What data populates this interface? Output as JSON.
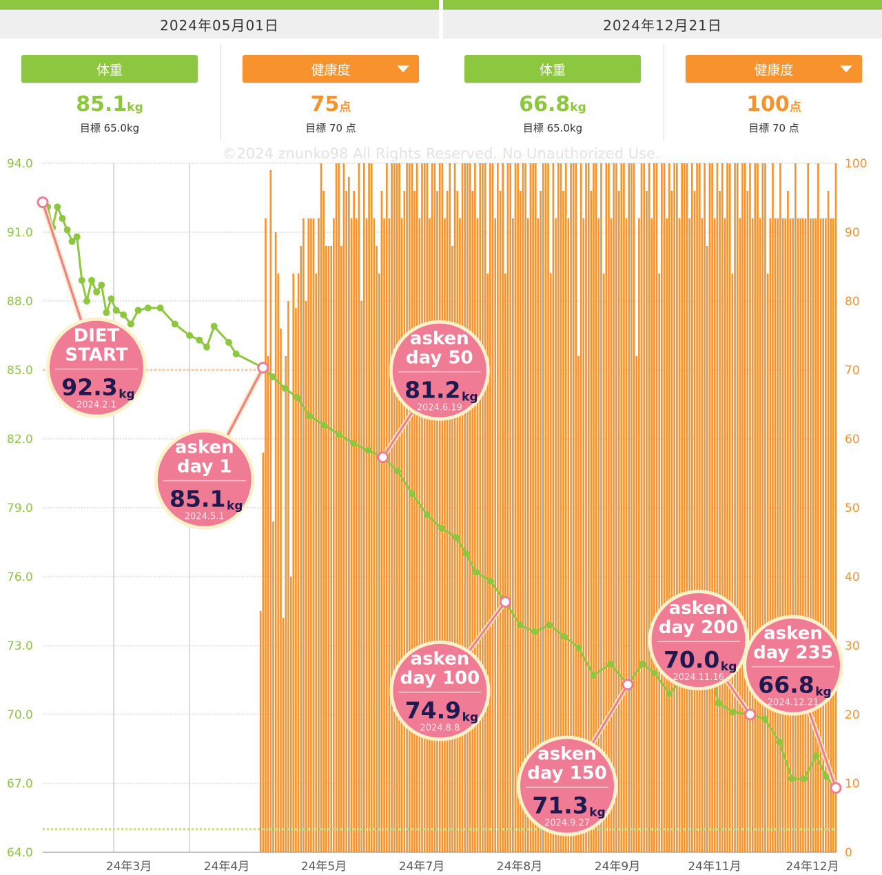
{
  "left_panel": {
    "date": "2024年05月01日",
    "weight": {
      "label": "体重",
      "value": "85.1",
      "unit": "kg",
      "goal": "目標 65.0kg"
    },
    "health": {
      "label": "健康度",
      "value": "75",
      "unit": "点",
      "goal": "目標 70 点"
    }
  },
  "right_panel": {
    "date": "2024年12月21日",
    "weight": {
      "label": "体重",
      "value": "66.8",
      "unit": "kg",
      "goal": "目標 65.0kg"
    },
    "health": {
      "label": "健康度",
      "value": "100",
      "unit": "点",
      "goal": "目標 70 点"
    }
  },
  "colors": {
    "weight": "#8dc63f",
    "health": "#f7922d",
    "balloon": "#f07b95",
    "balloon_text": "#1e1a4f"
  },
  "chart_data": {
    "type": "line",
    "watermark": "©2024 znunko98  All Rights Reserved. No Unauthorized Use.",
    "y_left": {
      "ticks": [
        "94.0",
        "91.0",
        "88.0",
        "85.0",
        "82.0",
        "79.0",
        "76.0",
        "73.0",
        "70.0",
        "67.0",
        "64.0"
      ],
      "min": 64.0,
      "max": 94.0
    },
    "y_right": {
      "ticks": [
        "100",
        "90",
        "80",
        "70",
        "60",
        "50",
        "40",
        "30",
        "20",
        "10",
        "0"
      ],
      "min": 0,
      "max": 100
    },
    "x_ticks": [
      "24年3月",
      "24年4月",
      "24年5月",
      "24年7月",
      "24年8月",
      "24年9月",
      "24年11月",
      "24年12月"
    ],
    "weight_goal": 65.0,
    "health_goal": 70,
    "series": [
      {
        "key": "weight",
        "points": [
          [
            "2024-02-01",
            92.3
          ],
          [
            "2024-02-03",
            92.1
          ],
          [
            "2024-02-05",
            91.2
          ],
          [
            "2024-02-07",
            92.1
          ],
          [
            "2024-02-09",
            91.6
          ],
          [
            "2024-02-11",
            91.1
          ],
          [
            "2024-02-13",
            90.6
          ],
          [
            "2024-02-15",
            90.8
          ],
          [
            "2024-02-17",
            88.9
          ],
          [
            "2024-02-19",
            88.0
          ],
          [
            "2024-02-21",
            88.9
          ],
          [
            "2024-02-23",
            88.4
          ],
          [
            "2024-02-25",
            88.7
          ],
          [
            "2024-02-27",
            87.5
          ],
          [
            "2024-02-29",
            88.1
          ],
          [
            "2024-03-02",
            87.6
          ],
          [
            "2024-03-05",
            87.4
          ],
          [
            "2024-03-08",
            87.0
          ],
          [
            "2024-03-11",
            87.6
          ],
          [
            "2024-03-15",
            87.7
          ],
          [
            "2024-03-20",
            87.7
          ],
          [
            "2024-03-26",
            87.0
          ],
          [
            "2024-04-01",
            86.5
          ],
          [
            "2024-04-05",
            86.3
          ],
          [
            "2024-04-08",
            86.0
          ],
          [
            "2024-04-11",
            86.9
          ],
          [
            "2024-04-17",
            86.2
          ],
          [
            "2024-04-20",
            85.7
          ],
          [
            "2024-05-01",
            85.1
          ],
          [
            "2024-05-05",
            84.7
          ],
          [
            "2024-05-10",
            84.2
          ],
          [
            "2024-05-15",
            83.8
          ],
          [
            "2024-05-20",
            83.0
          ],
          [
            "2024-05-26",
            82.6
          ],
          [
            "2024-06-01",
            82.2
          ],
          [
            "2024-06-07",
            81.8
          ],
          [
            "2024-06-13",
            81.5
          ],
          [
            "2024-06-19",
            81.2
          ],
          [
            "2024-06-25",
            80.6
          ],
          [
            "2024-07-01",
            79.6
          ],
          [
            "2024-07-07",
            78.7
          ],
          [
            "2024-07-13",
            78.1
          ],
          [
            "2024-07-19",
            77.7
          ],
          [
            "2024-07-23",
            77.0
          ],
          [
            "2024-07-27",
            76.2
          ],
          [
            "2024-08-02",
            75.8
          ],
          [
            "2024-08-08",
            74.9
          ],
          [
            "2024-08-14",
            73.9
          ],
          [
            "2024-08-20",
            73.6
          ],
          [
            "2024-08-26",
            73.9
          ],
          [
            "2024-09-01",
            73.4
          ],
          [
            "2024-09-07",
            72.9
          ],
          [
            "2024-09-13",
            71.7
          ],
          [
            "2024-09-20",
            72.2
          ],
          [
            "2024-09-27",
            71.3
          ],
          [
            "2024-10-03",
            72.2
          ],
          [
            "2024-10-08",
            71.8
          ],
          [
            "2024-10-14",
            70.9
          ],
          [
            "2024-10-20",
            71.6
          ],
          [
            "2024-10-26",
            71.6
          ],
          [
            "2024-10-30",
            72.6
          ],
          [
            "2024-11-03",
            70.5
          ],
          [
            "2024-11-09",
            70.1
          ],
          [
            "2024-11-16",
            70.0
          ],
          [
            "2024-11-22",
            69.8
          ],
          [
            "2024-11-28",
            68.8
          ],
          [
            "2024-12-03",
            67.2
          ],
          [
            "2024-12-08",
            67.2
          ],
          [
            "2024-12-13",
            68.2
          ],
          [
            "2024-12-17",
            67.3
          ],
          [
            "2024-12-21",
            66.8
          ]
        ]
      },
      {
        "key": "health",
        "start": "2024-04-30",
        "end": "2024-12-21",
        "values": [
          35,
          58,
          92,
          72,
          99,
          48,
          90,
          84,
          76,
          34,
          72,
          80,
          40,
          84,
          79,
          84,
          88,
          92,
          80,
          92,
          92,
          92,
          84,
          92,
          100,
          96,
          88,
          88,
          88,
          92,
          100,
          100,
          88,
          100,
          96,
          98,
          92,
          96,
          92,
          100,
          80,
          100,
          92,
          100,
          100,
          92,
          88,
          84,
          96,
          92,
          100,
          92,
          100,
          100,
          100,
          100,
          92,
          96,
          100,
          100,
          100,
          96,
          100,
          92,
          100,
          100,
          100,
          92,
          100,
          100,
          96,
          100,
          100,
          92,
          96,
          100,
          88,
          100,
          96,
          92,
          100,
          100,
          100,
          100,
          96,
          100,
          92,
          100,
          100,
          100,
          84,
          100,
          100,
          92,
          100,
          96,
          100,
          84,
          100,
          100,
          92,
          100,
          100,
          96,
          100,
          100,
          92,
          100,
          100,
          100,
          92,
          96,
          100,
          100,
          100,
          84,
          100,
          92,
          100,
          100,
          96,
          100,
          92,
          100,
          100,
          100,
          72,
          100,
          92,
          100,
          100,
          96,
          100,
          100,
          92,
          100,
          84,
          100,
          100,
          92,
          100,
          100,
          96,
          100,
          100,
          92,
          100,
          100,
          100,
          72,
          92,
          100,
          100,
          96,
          100,
          92,
          100,
          100,
          84,
          100,
          100,
          92,
          100,
          96,
          100,
          100,
          92,
          100,
          100,
          100,
          92,
          100,
          96,
          100,
          100,
          92,
          100,
          88,
          100,
          100,
          92,
          100,
          96,
          100,
          92,
          100,
          100,
          84,
          100,
          100,
          92,
          100,
          100,
          96,
          100,
          92,
          100,
          100,
          92,
          100,
          100,
          84,
          92,
          100,
          92,
          92,
          100,
          92,
          92,
          96,
          92,
          92,
          100,
          92,
          92,
          92,
          92,
          100,
          92,
          92,
          92,
          100,
          92,
          92,
          92,
          96,
          92,
          92,
          100
        ]
      }
    ],
    "balloons": [
      {
        "lines": [
          "DIET",
          "START"
        ],
        "value": "92.3",
        "unit": "kg",
        "date": "2024.2.1",
        "point_date": "2024-02-01",
        "point_value": 92.3,
        "pos": "below"
      },
      {
        "lines": [
          "asken",
          "day 1"
        ],
        "value": "85.1",
        "unit": "kg",
        "date": "2024.5.1",
        "point_date": "2024-05-01",
        "point_value": 85.1,
        "pos": "below-left"
      },
      {
        "lines": [
          "asken",
          "day 50"
        ],
        "value": "81.2",
        "unit": "kg",
        "date": "2024.6.19",
        "point_date": "2024-06-19",
        "point_value": 81.2,
        "pos": "above-right"
      },
      {
        "lines": [
          "asken",
          "day 100"
        ],
        "value": "74.9",
        "unit": "kg",
        "date": "2024.8.8",
        "point_date": "2024-08-08",
        "point_value": 74.9,
        "pos": "below-left"
      },
      {
        "lines": [
          "asken",
          "day 150"
        ],
        "value": "71.3",
        "unit": "kg",
        "date": "2024.9.27",
        "point_date": "2024-09-27",
        "point_value": 71.3,
        "pos": "below-left"
      },
      {
        "lines": [
          "asken",
          "day 200"
        ],
        "value": "70.0",
        "unit": "kg",
        "date": "2024.11.16",
        "point_date": "2024-11-16",
        "point_value": 70.0,
        "pos": "above-left"
      },
      {
        "lines": [
          "asken",
          "day 235"
        ],
        "value": "66.8",
        "unit": "kg",
        "date": "2024.12.21",
        "point_date": "2024-12-21",
        "point_value": 66.8,
        "pos": "above-left"
      }
    ]
  }
}
